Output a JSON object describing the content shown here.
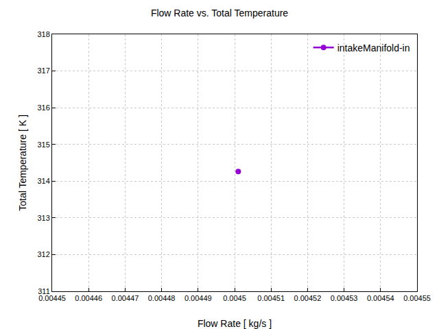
{
  "chart_data": {
    "type": "scatter",
    "title": "Flow Rate vs. Total Temperature",
    "x_label": "Flow Rate [ kg/s ]",
    "y_label": "Total Temperature [ K ]",
    "series": [
      {
        "name": "intakeManifold-in",
        "color": "#9400d3",
        "marker": "circle",
        "line_style": "solid",
        "x": [
          0.004501
        ],
        "values": [
          314.26
        ]
      }
    ],
    "xlim": [
      0.00445,
      0.00455
    ],
    "xticks": [
      0.00445,
      0.00446,
      0.00447,
      0.00448,
      0.00449,
      0.0045,
      0.00451,
      0.00452,
      0.00453,
      0.00454,
      0.00455
    ],
    "ylim": [
      311,
      318
    ],
    "yticks": [
      311,
      312,
      313,
      314,
      315,
      316,
      317,
      318
    ],
    "grid": true,
    "legend": "top right"
  }
}
